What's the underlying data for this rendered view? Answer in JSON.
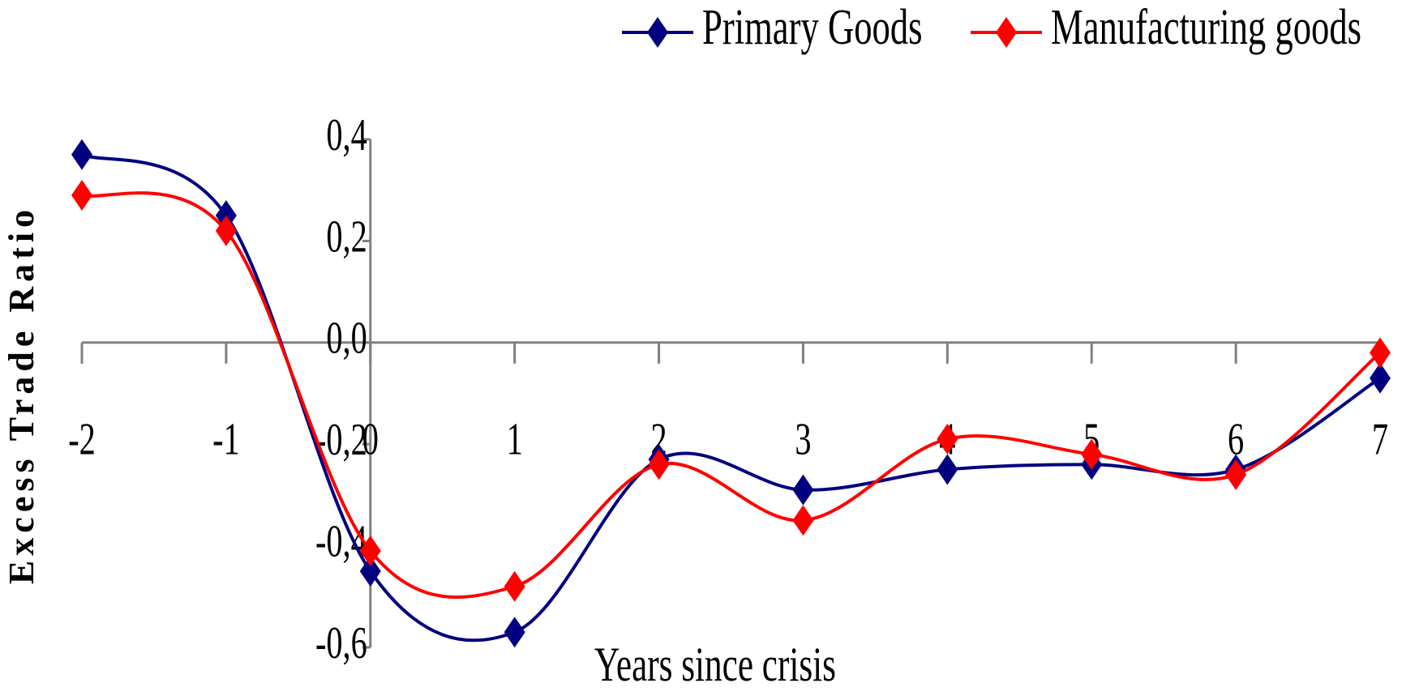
{
  "chart_data": {
    "type": "line",
    "x": [
      -2,
      -1,
      0,
      1,
      2,
      3,
      4,
      5,
      6,
      7
    ],
    "series": [
      {
        "name": "Primary Goods",
        "color": "#000080",
        "values": [
          0.37,
          0.25,
          -0.45,
          -0.57,
          -0.23,
          -0.29,
          -0.25,
          -0.24,
          -0.25,
          -0.07
        ]
      },
      {
        "name": "Manufacturing goods",
        "color": "#ff0000",
        "values": [
          0.29,
          0.22,
          -0.41,
          -0.48,
          -0.24,
          -0.35,
          -0.19,
          -0.22,
          -0.26,
          -0.02
        ]
      }
    ],
    "xlabel": "Years since crisis",
    "ylabel": "Excess Trade Ratio",
    "xlim": [
      -2,
      7
    ],
    "xticks": [
      -2,
      -1,
      0,
      1,
      2,
      3,
      4,
      5,
      6,
      7
    ],
    "ylim": [
      -0.6,
      0.4
    ],
    "yticks": [
      {
        "value": 0.4,
        "label": "0,4"
      },
      {
        "value": 0.2,
        "label": "0,2"
      },
      {
        "value": 0,
        "label": "0,0"
      },
      {
        "value": -0.2,
        "label": "-0,2"
      },
      {
        "value": -0.4,
        "label": "-0,4"
      },
      {
        "value": -0.6,
        "label": "-0,6"
      }
    ],
    "legend": "top-right",
    "smooth": true,
    "markers": "diamond"
  }
}
